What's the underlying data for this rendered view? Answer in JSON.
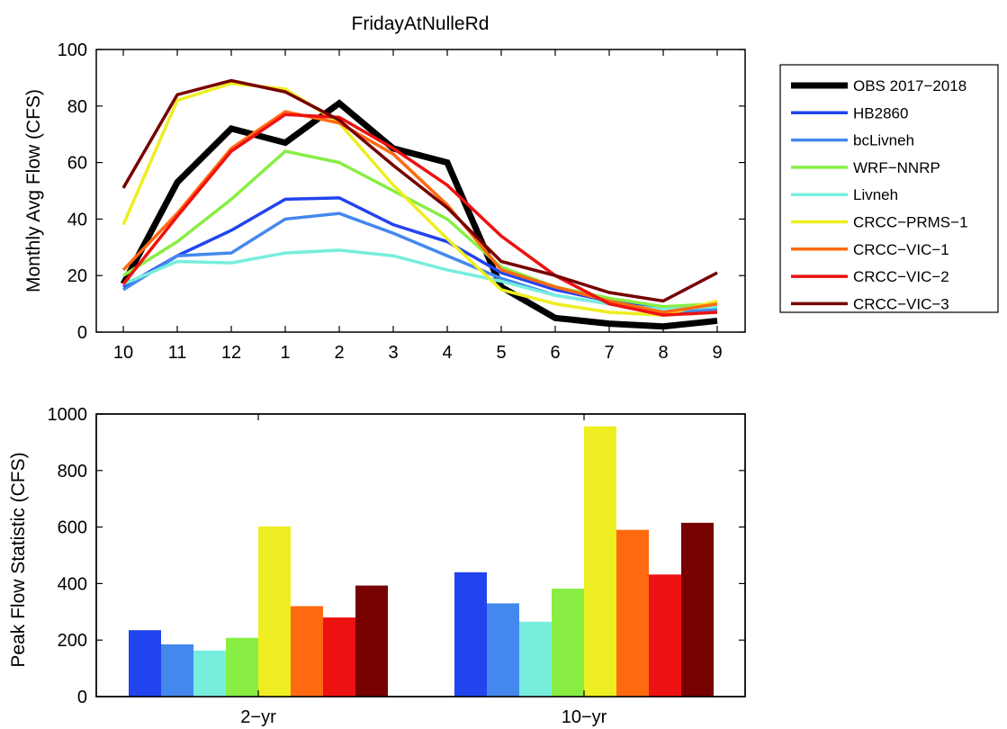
{
  "chart_data": [
    {
      "type": "line",
      "title": "FridayAtNulleRd",
      "ylabel": "Monthly Avg Flow (CFS)",
      "xlabel": "",
      "categories": [
        "10",
        "11",
        "12",
        "1",
        "2",
        "3",
        "4",
        "5",
        "6",
        "7",
        "8",
        "9"
      ],
      "ylim": [
        0,
        100
      ],
      "yticks": [
        "0",
        "20",
        "40",
        "60",
        "80",
        "100"
      ],
      "grid": false,
      "legend_position": "outside-right",
      "series": [
        {
          "name": "OBS 2017−2018",
          "color": "#000000",
          "values": [
            17,
            53,
            72,
            67,
            81,
            65,
            60,
            16,
            5,
            3,
            2,
            4
          ]
        },
        {
          "name": "HB2860",
          "color": "#2244ee",
          "values": [
            16,
            27,
            36,
            47,
            47.5,
            38,
            32,
            21,
            15,
            11,
            8,
            9
          ]
        },
        {
          "name": "bcLivneh",
          "color": "#4488ee",
          "values": [
            15,
            27,
            28,
            40,
            42,
            35,
            27,
            19,
            13,
            10,
            7,
            8
          ]
        },
        {
          "name": "WRF−NNRP",
          "color": "#88ee44",
          "values": [
            20,
            32,
            47,
            64,
            60,
            50,
            40,
            23,
            16,
            12,
            9,
            10
          ]
        },
        {
          "name": "Livneh",
          "color": "#77eedd",
          "values": [
            17,
            25,
            24.5,
            28,
            29,
            27,
            22,
            18,
            13,
            10,
            8,
            9
          ]
        },
        {
          "name": "CRCC−PRMS−1",
          "color": "#eeee22",
          "values": [
            38,
            82,
            88,
            86,
            74,
            52,
            33,
            15,
            10,
            7,
            6,
            11
          ]
        },
        {
          "name": "CRCC−VIC−1",
          "color": "#ff6a10",
          "values": [
            22,
            42,
            65,
            78,
            74,
            63,
            45,
            22,
            16,
            11,
            7,
            10
          ]
        },
        {
          "name": "CRCC−VIC−2",
          "color": "#ee1111",
          "values": [
            17,
            41,
            64,
            77,
            76,
            65,
            52,
            34,
            20,
            10,
            6,
            7
          ]
        },
        {
          "name": "CRCC−VIC−3",
          "color": "#770000",
          "values": [
            51,
            84,
            89,
            85,
            75,
            59,
            44,
            25,
            20,
            14,
            11,
            21
          ]
        }
      ]
    },
    {
      "type": "bar",
      "title": "",
      "ylabel": "Peak Flow Statistic (CFS)",
      "xlabel": "",
      "categories": [
        "2−yr",
        "10−yr"
      ],
      "ylim": [
        0,
        1000
      ],
      "yticks": [
        "0",
        "200",
        "400",
        "600",
        "800",
        "1000"
      ],
      "grid": false,
      "series": [
        {
          "color": "#2244ee",
          "values": [
            235,
            440
          ]
        },
        {
          "color": "#4488ee",
          "values": [
            185,
            330
          ]
        },
        {
          "color": "#77eedd",
          "values": [
            163,
            265
          ]
        },
        {
          "color": "#88ee44",
          "values": [
            208,
            382
          ]
        },
        {
          "color": "#eeee22",
          "values": [
            602,
            956
          ]
        },
        {
          "color": "#ff6a10",
          "values": [
            320,
            590
          ]
        },
        {
          "color": "#ee1111",
          "values": [
            280,
            432
          ]
        },
        {
          "color": "#770000",
          "values": [
            393,
            615
          ]
        }
      ]
    }
  ]
}
